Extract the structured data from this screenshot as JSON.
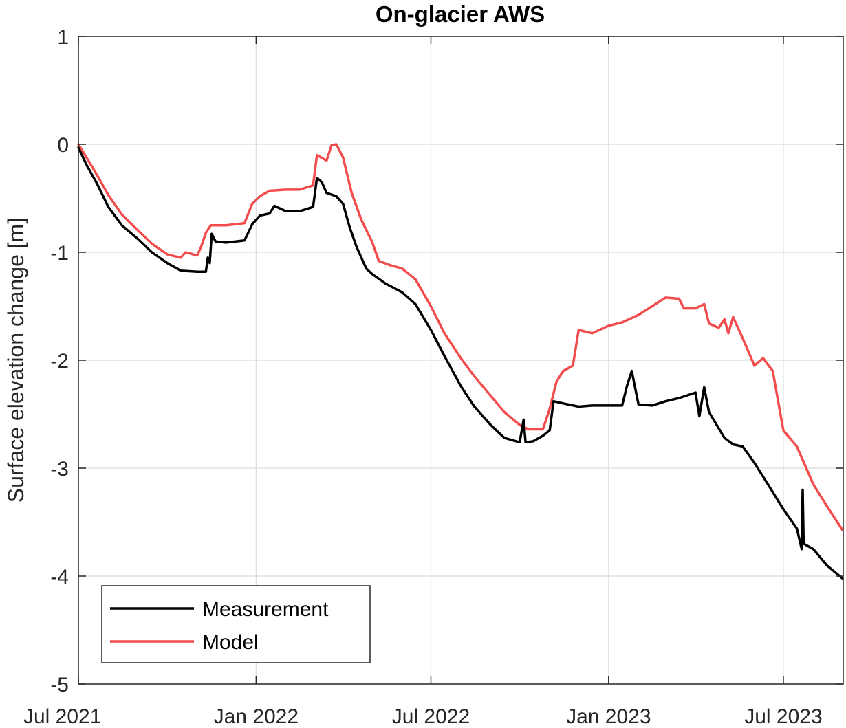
{
  "chart_data": {
    "type": "line",
    "title": "On-glacier AWS",
    "xlabel": "",
    "ylabel": "Surface elevation change [m]",
    "ylim": [
      -5,
      1
    ],
    "xlim": [
      "2021-07-01",
      "2023-08-31"
    ],
    "yticks": [
      {
        "value": 1,
        "label": "1"
      },
      {
        "value": 0,
        "label": "0"
      },
      {
        "value": -1,
        "label": "-1"
      },
      {
        "value": -2,
        "label": "-2"
      },
      {
        "value": -3,
        "label": "-3"
      },
      {
        "value": -4,
        "label": "-4"
      },
      {
        "value": -5,
        "label": "-5"
      }
    ],
    "xticks": [
      {
        "date": "2021-07-01",
        "label": "Jul 2021"
      },
      {
        "date": "2022-01-01",
        "label": "Jan 2022"
      },
      {
        "date": "2022-07-01",
        "label": "Jul 2022"
      },
      {
        "date": "2023-01-01",
        "label": "Jan 2023"
      },
      {
        "date": "2023-07-01",
        "label": "Jul 2023"
      }
    ],
    "grid": true,
    "legend_position": "bottom-left",
    "series": [
      {
        "name": "Measurement",
        "color": "#000000",
        "points": [
          [
            "2021-07-01",
            -0.03
          ],
          [
            "2021-07-10",
            -0.2
          ],
          [
            "2021-07-20",
            -0.36
          ],
          [
            "2021-08-01",
            -0.58
          ],
          [
            "2021-08-15",
            -0.75
          ],
          [
            "2021-09-01",
            -0.88
          ],
          [
            "2021-09-15",
            -1.0
          ],
          [
            "2021-10-01",
            -1.1
          ],
          [
            "2021-10-15",
            -1.17
          ],
          [
            "2021-11-01",
            -1.18
          ],
          [
            "2021-11-10",
            -1.18
          ],
          [
            "2021-11-12",
            -1.05
          ],
          [
            "2021-11-14",
            -1.1
          ],
          [
            "2021-11-16",
            -0.83
          ],
          [
            "2021-11-20",
            -0.9
          ],
          [
            "2021-12-01",
            -0.91
          ],
          [
            "2021-12-20",
            -0.89
          ],
          [
            "2021-12-28",
            -0.74
          ],
          [
            "2022-01-05",
            -0.66
          ],
          [
            "2022-01-15",
            -0.64
          ],
          [
            "2022-01-20",
            -0.57
          ],
          [
            "2022-02-01",
            -0.62
          ],
          [
            "2022-02-15",
            -0.62
          ],
          [
            "2022-03-01",
            -0.58
          ],
          [
            "2022-03-05",
            -0.31
          ],
          [
            "2022-03-10",
            -0.35
          ],
          [
            "2022-03-15",
            -0.45
          ],
          [
            "2022-03-25",
            -0.48
          ],
          [
            "2022-04-01",
            -0.55
          ],
          [
            "2022-04-08",
            -0.77
          ],
          [
            "2022-04-15",
            -0.95
          ],
          [
            "2022-04-20",
            -1.05
          ],
          [
            "2022-04-25",
            -1.15
          ],
          [
            "2022-05-01",
            -1.2
          ],
          [
            "2022-05-15",
            -1.29
          ],
          [
            "2022-06-01",
            -1.37
          ],
          [
            "2022-06-15",
            -1.48
          ],
          [
            "2022-07-01",
            -1.72
          ],
          [
            "2022-07-15",
            -1.96
          ],
          [
            "2022-08-01",
            -2.24
          ],
          [
            "2022-08-15",
            -2.43
          ],
          [
            "2022-09-01",
            -2.6
          ],
          [
            "2022-09-15",
            -2.72
          ],
          [
            "2022-10-01",
            -2.76
          ],
          [
            "2022-10-05",
            -2.55
          ],
          [
            "2022-10-07",
            -2.76
          ],
          [
            "2022-10-15",
            -2.75
          ],
          [
            "2022-10-25",
            -2.7
          ],
          [
            "2022-11-01",
            -2.65
          ],
          [
            "2022-11-05",
            -2.38
          ],
          [
            "2022-11-15",
            -2.4
          ],
          [
            "2022-12-01",
            -2.43
          ],
          [
            "2022-12-15",
            -2.42
          ],
          [
            "2023-01-01",
            -2.42
          ],
          [
            "2023-01-15",
            -2.42
          ],
          [
            "2023-01-20",
            -2.24
          ],
          [
            "2023-01-25",
            -2.1
          ],
          [
            "2023-02-01",
            -2.41
          ],
          [
            "2023-02-15",
            -2.42
          ],
          [
            "2023-03-01",
            -2.38
          ],
          [
            "2023-03-15",
            -2.35
          ],
          [
            "2023-04-01",
            -2.3
          ],
          [
            "2023-04-05",
            -2.52
          ],
          [
            "2023-04-10",
            -2.25
          ],
          [
            "2023-04-15",
            -2.48
          ],
          [
            "2023-05-01",
            -2.72
          ],
          [
            "2023-05-10",
            -2.78
          ],
          [
            "2023-05-20",
            -2.8
          ],
          [
            "2023-06-01",
            -2.95
          ],
          [
            "2023-06-15",
            -3.15
          ],
          [
            "2023-07-01",
            -3.38
          ],
          [
            "2023-07-15",
            -3.56
          ],
          [
            "2023-07-20",
            -3.75
          ],
          [
            "2023-07-21",
            -3.2
          ],
          [
            "2023-07-22",
            -3.7
          ],
          [
            "2023-08-01",
            -3.75
          ],
          [
            "2023-08-15",
            -3.9
          ],
          [
            "2023-08-31",
            -4.02
          ]
        ]
      },
      {
        "name": "Model",
        "color": "#f24c4c",
        "points": [
          [
            "2021-07-01",
            0.0
          ],
          [
            "2021-07-10",
            -0.13
          ],
          [
            "2021-07-20",
            -0.28
          ],
          [
            "2021-08-01",
            -0.47
          ],
          [
            "2021-08-15",
            -0.65
          ],
          [
            "2021-09-01",
            -0.8
          ],
          [
            "2021-09-15",
            -0.92
          ],
          [
            "2021-10-01",
            -1.02
          ],
          [
            "2021-10-15",
            -1.05
          ],
          [
            "2021-10-20",
            -1.0
          ],
          [
            "2021-11-01",
            -1.03
          ],
          [
            "2021-11-05",
            -0.95
          ],
          [
            "2021-11-10",
            -0.82
          ],
          [
            "2021-11-15",
            -0.75
          ],
          [
            "2021-12-01",
            -0.75
          ],
          [
            "2021-12-20",
            -0.73
          ],
          [
            "2021-12-28",
            -0.55
          ],
          [
            "2022-01-05",
            -0.48
          ],
          [
            "2022-01-15",
            -0.43
          ],
          [
            "2022-02-01",
            -0.42
          ],
          [
            "2022-02-15",
            -0.42
          ],
          [
            "2022-03-01",
            -0.38
          ],
          [
            "2022-03-05",
            -0.1
          ],
          [
            "2022-03-15",
            -0.15
          ],
          [
            "2022-03-20",
            -0.01
          ],
          [
            "2022-03-25",
            0.0
          ],
          [
            "2022-04-01",
            -0.12
          ],
          [
            "2022-04-10",
            -0.45
          ],
          [
            "2022-04-20",
            -0.7
          ],
          [
            "2022-05-01",
            -0.9
          ],
          [
            "2022-05-08",
            -1.08
          ],
          [
            "2022-05-20",
            -1.12
          ],
          [
            "2022-06-01",
            -1.15
          ],
          [
            "2022-06-15",
            -1.25
          ],
          [
            "2022-07-01",
            -1.5
          ],
          [
            "2022-07-15",
            -1.75
          ],
          [
            "2022-08-01",
            -1.98
          ],
          [
            "2022-08-15",
            -2.15
          ],
          [
            "2022-09-01",
            -2.33
          ],
          [
            "2022-09-15",
            -2.48
          ],
          [
            "2022-10-01",
            -2.6
          ],
          [
            "2022-10-10",
            -2.64
          ],
          [
            "2022-10-25",
            -2.64
          ],
          [
            "2022-11-01",
            -2.45
          ],
          [
            "2022-11-08",
            -2.2
          ],
          [
            "2022-11-15",
            -2.1
          ],
          [
            "2022-11-25",
            -2.05
          ],
          [
            "2022-12-01",
            -1.72
          ],
          [
            "2022-12-15",
            -1.75
          ],
          [
            "2023-01-01",
            -1.68
          ],
          [
            "2023-01-15",
            -1.65
          ],
          [
            "2023-02-01",
            -1.58
          ],
          [
            "2023-02-15",
            -1.5
          ],
          [
            "2023-03-01",
            -1.42
          ],
          [
            "2023-03-15",
            -1.43
          ],
          [
            "2023-03-20",
            -1.52
          ],
          [
            "2023-04-01",
            -1.52
          ],
          [
            "2023-04-10",
            -1.48
          ],
          [
            "2023-04-15",
            -1.66
          ],
          [
            "2023-04-25",
            -1.7
          ],
          [
            "2023-05-01",
            -1.62
          ],
          [
            "2023-05-05",
            -1.75
          ],
          [
            "2023-05-10",
            -1.6
          ],
          [
            "2023-05-20",
            -1.8
          ],
          [
            "2023-06-01",
            -2.05
          ],
          [
            "2023-06-10",
            -1.98
          ],
          [
            "2023-06-20",
            -2.1
          ],
          [
            "2023-06-25",
            -2.35
          ],
          [
            "2023-07-01",
            -2.65
          ],
          [
            "2023-07-15",
            -2.8
          ],
          [
            "2023-08-01",
            -3.15
          ],
          [
            "2023-08-15",
            -3.35
          ],
          [
            "2023-08-31",
            -3.57
          ]
        ]
      }
    ]
  }
}
